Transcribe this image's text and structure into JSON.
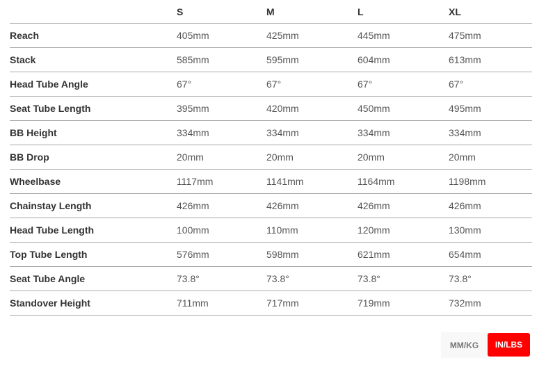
{
  "table": {
    "headers": [
      "",
      "S",
      "M",
      "L",
      "XL"
    ],
    "rows": [
      {
        "label": "Reach",
        "values": [
          "405mm",
          "425mm",
          "445mm",
          "475mm"
        ]
      },
      {
        "label": "Stack",
        "values": [
          "585mm",
          "595mm",
          "604mm",
          "613mm"
        ]
      },
      {
        "label": "Head Tube Angle",
        "values": [
          "67°",
          "67°",
          "67°",
          "67°"
        ]
      },
      {
        "label": "Seat Tube Length",
        "values": [
          "395mm",
          "420mm",
          "450mm",
          "495mm"
        ]
      },
      {
        "label": "BB Height",
        "values": [
          "334mm",
          "334mm",
          "334mm",
          "334mm"
        ]
      },
      {
        "label": "BB Drop",
        "values": [
          "20mm",
          "20mm",
          "20mm",
          "20mm"
        ]
      },
      {
        "label": "Wheelbase",
        "values": [
          "1117mm",
          "1141mm",
          "1164mm",
          "1198mm"
        ]
      },
      {
        "label": "Chainstay Length",
        "values": [
          "426mm",
          "426mm",
          "426mm",
          "426mm"
        ]
      },
      {
        "label": "Head Tube Length",
        "values": [
          "100mm",
          "110mm",
          "120mm",
          "130mm"
        ]
      },
      {
        "label": "Top Tube Length",
        "values": [
          "576mm",
          "598mm",
          "621mm",
          "654mm"
        ]
      },
      {
        "label": "Seat Tube Angle",
        "values": [
          "73.8°",
          "73.8°",
          "73.8°",
          "73.8°"
        ]
      },
      {
        "label": "Standover Height",
        "values": [
          "711mm",
          "717mm",
          "719mm",
          "732mm"
        ]
      }
    ]
  },
  "units": {
    "mm_label": "MM/KG",
    "in_label": "IN/LBS",
    "active": "IN/LBS",
    "active_color": "#ff0000"
  }
}
